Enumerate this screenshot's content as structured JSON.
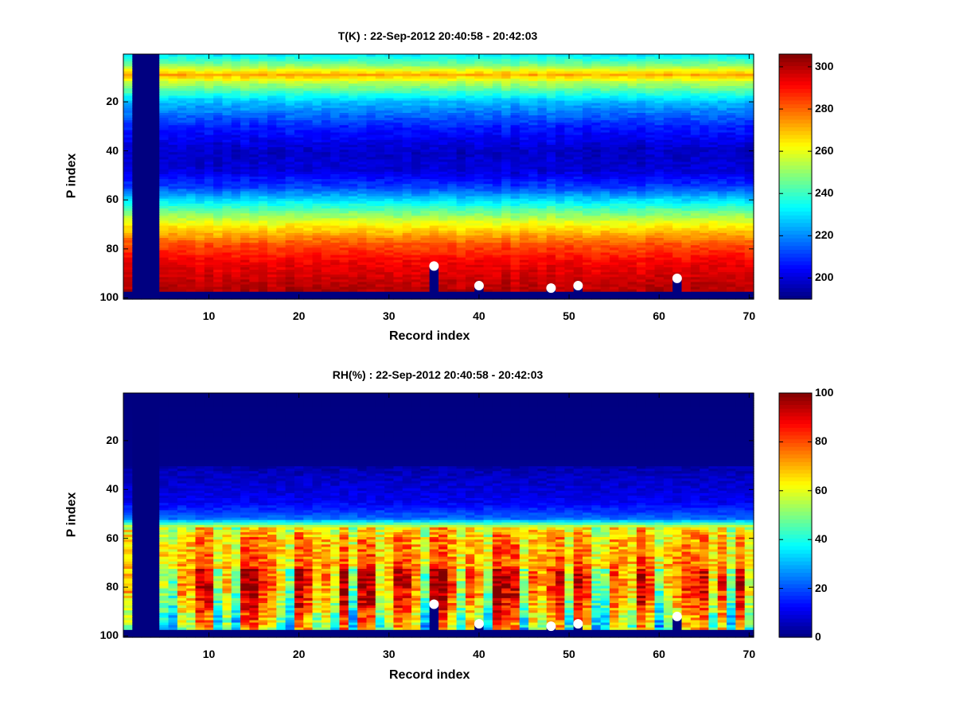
{
  "chart_data": [
    {
      "type": "heatmap",
      "title": "T(K) : 22-Sep-2012 20:40:58 - 20:42:03",
      "xlabel": "Record index",
      "ylabel": "P index",
      "xlim": [
        0.5,
        70.5
      ],
      "ylim": [
        0.5,
        100.5
      ],
      "xticks": [
        10,
        20,
        30,
        40,
        50,
        60,
        70
      ],
      "yticks": [
        20,
        40,
        60,
        80,
        100
      ],
      "colorbar": {
        "range": [
          190,
          306
        ],
        "ticks": [
          200,
          220,
          240,
          260,
          280,
          300
        ],
        "colormap": "jet"
      },
      "missing_records": [
        2,
        3,
        4
      ],
      "missing_bottom_levels": [
        98,
        99,
        100
      ],
      "profile_levels": [
        1,
        5,
        9,
        12,
        20,
        30,
        40,
        48,
        55,
        62,
        70,
        78,
        85,
        92,
        97
      ],
      "profile_values": [
        232,
        248,
        272,
        255,
        226,
        208,
        198,
        200,
        212,
        236,
        262,
        282,
        292,
        297,
        300
      ],
      "markers": [
        {
          "record": 35,
          "level": 87
        },
        {
          "record": 40,
          "level": 95
        },
        {
          "record": 48,
          "level": 96
        },
        {
          "record": 51,
          "level": 95
        },
        {
          "record": 62,
          "level": 92
        }
      ]
    },
    {
      "type": "heatmap",
      "title": "RH(%) : 22-Sep-2012 20:40:58 - 20:42:03",
      "xlabel": "Record index",
      "ylabel": "P index",
      "xlim": [
        0.5,
        70.5
      ],
      "ylim": [
        0.5,
        100.5
      ],
      "xticks": [
        10,
        20,
        30,
        40,
        50,
        60,
        70
      ],
      "yticks": [
        20,
        40,
        60,
        80,
        100
      ],
      "colorbar": {
        "range": [
          0,
          100
        ],
        "ticks": [
          0,
          20,
          40,
          60,
          80,
          100
        ],
        "colormap": "jet"
      },
      "missing_records": [
        2,
        3,
        4
      ],
      "missing_bottom_levels": [
        98,
        99,
        100
      ],
      "profile_levels": [
        1,
        30,
        36,
        45,
        52,
        56,
        60,
        70,
        78,
        85,
        92,
        97
      ],
      "profile_values": [
        0,
        1,
        4,
        8,
        20,
        62,
        68,
        72,
        75,
        70,
        60,
        55
      ],
      "markers": [
        {
          "record": 35,
          "level": 87
        },
        {
          "record": 40,
          "level": 95
        },
        {
          "record": 48,
          "level": 96
        },
        {
          "record": 51,
          "level": 95
        },
        {
          "record": 62,
          "level": 92
        }
      ]
    }
  ]
}
